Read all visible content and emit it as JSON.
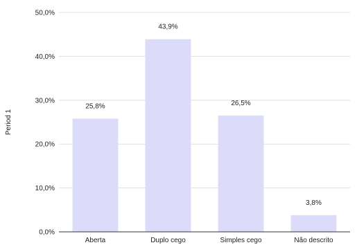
{
  "chart_data": {
    "type": "bar",
    "categories": [
      "Aberta",
      "Duplo cego",
      "Simples cego",
      "Não descrito"
    ],
    "series": [
      {
        "values": [
          25.8,
          43.9,
          26.5,
          3.8
        ]
      }
    ],
    "data_labels": [
      "25,8%",
      "43,9%",
      "26,5%",
      "3,8%"
    ],
    "title": "",
    "xlabel": "",
    "ylabel": "Period 1",
    "ylim": [
      0,
      50
    ],
    "yticks": [
      0,
      10,
      20,
      30,
      40,
      50
    ],
    "ytick_labels": [
      "0,0%",
      "10,0%",
      "20,0%",
      "30,0%",
      "40,0%",
      "50,0%"
    ],
    "grid": true,
    "legend": "none",
    "colors": {
      "bar": "#dcdcfa",
      "grid": "#e0e0e0",
      "axis": "#333333"
    }
  }
}
